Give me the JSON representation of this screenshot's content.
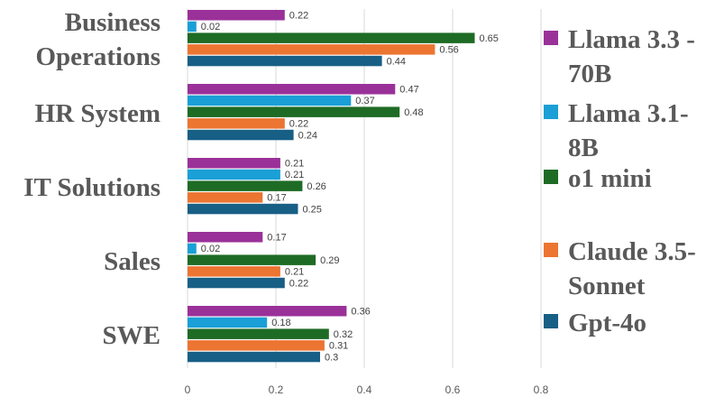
{
  "chart_data": {
    "type": "bar",
    "orientation": "horizontal",
    "categories": [
      "Business Operations",
      "HR System",
      "IT Solutions",
      "Sales",
      "SWE"
    ],
    "category_lines": [
      [
        "Business",
        "Operations"
      ],
      [
        "HR System"
      ],
      [
        "IT Solutions"
      ],
      [
        "Sales"
      ],
      [
        "SWE"
      ]
    ],
    "series": [
      {
        "name": "Llama 3.3 - 70B",
        "legend_lines": [
          "Llama 3.3 -",
          "70B"
        ],
        "color": "#9a3199",
        "values": [
          0.22,
          0.47,
          0.21,
          0.17,
          0.36
        ]
      },
      {
        "name": "Llama 3.1-8B",
        "legend_lines": [
          "Llama 3.1-",
          "8B"
        ],
        "color": "#1a9fd6",
        "values": [
          0.02,
          0.37,
          0.21,
          0.02,
          0.18
        ]
      },
      {
        "name": "o1 mini",
        "legend_lines": [
          "o1 mini"
        ],
        "color": "#1e6b25",
        "values": [
          0.65,
          0.48,
          0.26,
          0.29,
          0.32
        ]
      },
      {
        "name": "Claude 3.5-Sonnet",
        "legend_lines": [
          "Claude 3.5-",
          "Sonnet"
        ],
        "color": "#ec7532",
        "values": [
          0.56,
          0.22,
          0.17,
          0.21,
          0.31
        ]
      },
      {
        "name": "Gpt-4o",
        "legend_lines": [
          "Gpt-4o"
        ],
        "color": "#185f85",
        "values": [
          0.44,
          0.24,
          0.25,
          0.22,
          0.3
        ]
      }
    ],
    "data_labels": [
      [
        "0.22",
        "0.47",
        "0.21",
        "0.17",
        "0.36"
      ],
      [
        "0.02",
        "0.37",
        "0.21",
        "0.02",
        "0.18"
      ],
      [
        "0.65",
        "0.48",
        "0.26",
        "0.29",
        "0.32"
      ],
      [
        "0.56",
        "0.22",
        "0.17",
        "0.21",
        "0.31"
      ],
      [
        "0.44",
        "0.24",
        "0.25",
        "0.22",
        "0.3"
      ]
    ],
    "x_ticks": [
      0,
      0.2,
      0.4,
      0.6,
      0.8
    ],
    "x_tick_labels": [
      "0",
      "0.2",
      "0.4",
      "0.6",
      "0.8"
    ],
    "xlim": [
      0,
      0.8
    ],
    "grid": true,
    "legend_position": "right",
    "title": "",
    "xlabel": "",
    "ylabel": ""
  }
}
